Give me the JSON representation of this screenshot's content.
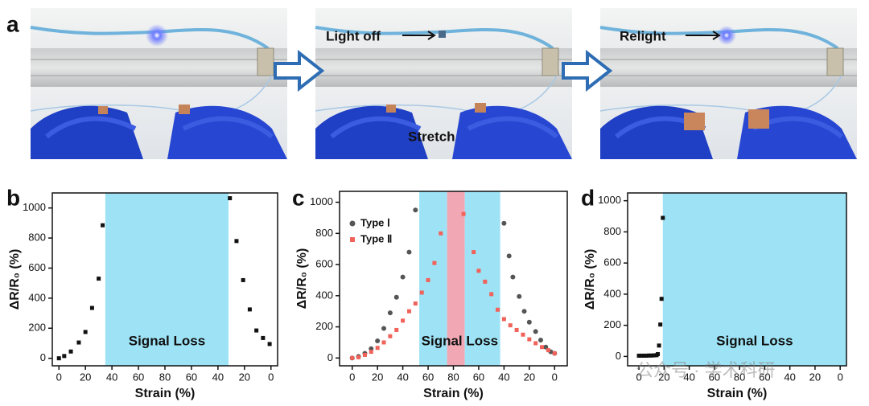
{
  "figure_labels": [
    "a",
    "b",
    "c",
    "d"
  ],
  "photos": {
    "annotations": [
      "Light off",
      "Stretch",
      "Relight"
    ]
  },
  "watermark": "公众号 · 学术科研",
  "chart_data": [
    {
      "type": "scatter",
      "x_label": "Strain (%)",
      "y_label": "ΔR/R₀ (%)",
      "xlim": [
        -5,
        165
      ],
      "ylim": [
        -50,
        1100
      ],
      "xticks": [
        0,
        20,
        40,
        60,
        80,
        {
          "value": 100,
          "label": "60"
        },
        {
          "value": 120,
          "label": "40"
        },
        {
          "value": 140,
          "label": "20"
        },
        {
          "value": 160,
          "label": "0"
        }
      ],
      "yticks": [
        0,
        200,
        400,
        600,
        800,
        1000
      ],
      "regions": [
        {
          "x": [
            35,
            128
          ],
          "color": "#9de3f5"
        }
      ],
      "annotation": "Signal Loss",
      "series": [
        {
          "color": "#111111",
          "marker": "square",
          "x": [
            0,
            4,
            9,
            15,
            20,
            25,
            30,
            33,
            129,
            134,
            139,
            144,
            149,
            154,
            159
          ],
          "values": [
            0,
            15,
            45,
            105,
            175,
            335,
            530,
            885,
            1065,
            780,
            520,
            325,
            185,
            135,
            95
          ]
        }
      ]
    },
    {
      "type": "scatter",
      "x_label": "Strain (%)",
      "y_label": "ΔR/R₀ (%)",
      "xlim": [
        -10,
        170
      ],
      "ylim": [
        -50,
        1070
      ],
      "xticks": [
        0,
        20,
        40,
        60,
        80,
        {
          "value": 100,
          "label": "60"
        },
        {
          "value": 120,
          "label": "40"
        },
        {
          "value": 140,
          "label": "20"
        },
        {
          "value": 160,
          "label": "0"
        }
      ],
      "yticks": [
        0,
        200,
        400,
        600,
        800,
        1000
      ],
      "regions": [
        {
          "x": [
            53,
            75
          ],
          "color": "#9de3f5"
        },
        {
          "x": [
            75,
            89
          ],
          "color": "#f2a7b4"
        },
        {
          "x": [
            89,
            117
          ],
          "color": "#9de3f5"
        }
      ],
      "annotation": "Signal Loss",
      "legend": "upper left",
      "series": [
        {
          "name": "Type Ⅰ",
          "color": "#555555",
          "marker": "circle",
          "x": [
            0,
            5,
            10,
            15,
            20,
            25,
            30,
            35,
            40,
            45,
            50,
            120,
            124,
            127,
            132,
            136,
            140,
            145,
            149,
            153,
            157,
            160
          ],
          "values": [
            0,
            10,
            30,
            60,
            110,
            190,
            290,
            390,
            520,
            680,
            950,
            865,
            655,
            520,
            395,
            300,
            230,
            170,
            115,
            70,
            40,
            30
          ]
        },
        {
          "name": "Type Ⅱ",
          "color": "#f0625a",
          "marker": "square",
          "x": [
            0,
            5,
            10,
            15,
            20,
            25,
            30,
            35,
            40,
            45,
            50,
            55,
            60,
            65,
            70,
            88,
            96,
            100,
            105,
            110,
            115,
            120,
            125,
            130,
            135,
            140,
            145,
            150,
            155,
            160
          ],
          "values": [
            0,
            5,
            20,
            40,
            65,
            100,
            140,
            180,
            240,
            300,
            350,
            420,
            500,
            610,
            800,
            925,
            680,
            560,
            490,
            410,
            310,
            250,
            210,
            180,
            150,
            120,
            95,
            70,
            50,
            30
          ]
        }
      ]
    },
    {
      "type": "scatter",
      "x_label": "Strain (%)",
      "y_label": "ΔR/R₀ (%)",
      "xlim": [
        -9,
        165
      ],
      "ylim": [
        -60,
        1050
      ],
      "xticks": [
        0,
        20,
        40,
        60,
        80,
        {
          "value": 100,
          "label": "60"
        },
        {
          "value": 120,
          "label": "40"
        },
        {
          "value": 140,
          "label": "20"
        },
        {
          "value": 160,
          "label": "0"
        }
      ],
      "yticks": [
        0,
        200,
        400,
        600,
        800,
        1000
      ],
      "regions": [
        {
          "x": [
            19,
            165
          ],
          "color": "#9de3f5"
        }
      ],
      "annotation": "Signal Loss",
      "series": [
        {
          "color": "#111111",
          "marker": "square",
          "x": [
            0,
            2,
            4,
            6,
            8,
            10,
            12,
            14,
            15,
            16,
            17,
            18,
            19
          ],
          "values": [
            5,
            5,
            5,
            5,
            6,
            6,
            7,
            8,
            15,
            70,
            205,
            370,
            890
          ]
        }
      ]
    }
  ]
}
